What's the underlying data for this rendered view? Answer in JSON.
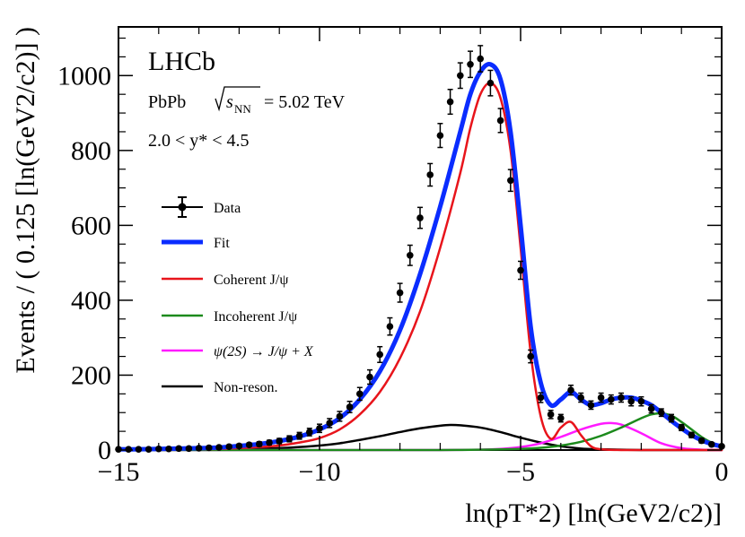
{
  "chart_data": {
    "type": "line",
    "experiment": "LHCb",
    "collision": "PbPb",
    "energy_label": "= 5.02 TeV",
    "rapidity_label": "2.0 <  y* < 4.5",
    "xlabel": "ln(pT*2) [ln(GeV2/c2)]",
    "ylabel": "Events / ( 0.125 [ln(GeV2/c2)] )",
    "xlim": [
      -15,
      0
    ],
    "ylim": [
      0,
      1130
    ],
    "x_ticks": [
      -15,
      -10,
      -5,
      0
    ],
    "y_ticks": [
      0,
      200,
      400,
      600,
      800,
      1000
    ],
    "x_tick_labels": [
      "−15",
      "−10",
      "−5",
      "0"
    ],
    "y_tick_labels": [
      "0",
      "200",
      "400",
      "600",
      "800",
      "1000"
    ],
    "legend": [
      {
        "name": "Data",
        "color": "#000000"
      },
      {
        "name": "Fit",
        "color": "#0a2cff"
      },
      {
        "name": "Coherent  J/ψ",
        "color": "#e8141b"
      },
      {
        "name": "Incoherent  J/ψ",
        "color": "#1c8a1c"
      },
      {
        "name": "ψ(2S)  →  J/ψ +  X",
        "color": "#ff1aff"
      },
      {
        "name": "Non-reson.",
        "color": "#000000"
      }
    ],
    "series": [
      {
        "name": "Data",
        "x": [
          -15.0,
          -14.75,
          -14.5,
          -14.25,
          -14.0,
          -13.75,
          -13.5,
          -13.25,
          -13.0,
          -12.75,
          -12.5,
          -12.25,
          -12.0,
          -11.75,
          -11.5,
          -11.25,
          -11.0,
          -10.75,
          -10.5,
          -10.25,
          -10.0,
          -9.75,
          -9.5,
          -9.25,
          -9.0,
          -8.75,
          -8.5,
          -8.25,
          -8.0,
          -7.75,
          -7.5,
          -7.25,
          -7.0,
          -6.75,
          -6.5,
          -6.25,
          -6.0,
          -5.75,
          -5.5,
          -5.25,
          -5.0,
          -4.75,
          -4.5,
          -4.25,
          -4.0,
          -3.75,
          -3.5,
          -3.25,
          -3.0,
          -2.75,
          -2.5,
          -2.25,
          -2.0,
          -1.75,
          -1.5,
          -1.25,
          -1.0,
          -0.75,
          -0.5,
          -0.25,
          0.0
        ],
        "y": [
          2,
          2,
          2,
          2,
          3,
          3,
          4,
          4,
          5,
          6,
          7,
          9,
          11,
          14,
          16,
          20,
          24,
          30,
          38,
          48,
          58,
          72,
          90,
          115,
          150,
          195,
          255,
          330,
          420,
          520,
          620,
          735,
          840,
          930,
          1000,
          1030,
          1045,
          980,
          880,
          720,
          480,
          250,
          140,
          95,
          85,
          160,
          140,
          120,
          140,
          135,
          140,
          130,
          130,
          110,
          100,
          85,
          60,
          40,
          25,
          15,
          10
        ],
        "yerr": [
          2,
          2,
          2,
          2,
          2,
          2,
          3,
          3,
          3,
          3,
          4,
          4,
          5,
          5,
          6,
          6,
          7,
          8,
          9,
          10,
          11,
          12,
          13,
          15,
          17,
          19,
          21,
          23,
          25,
          27,
          28,
          30,
          32,
          33,
          34,
          35,
          35,
          34,
          32,
          29,
          24,
          17,
          13,
          11,
          10,
          13,
          12,
          11,
          12,
          12,
          12,
          12,
          12,
          11,
          10,
          10,
          8,
          7,
          6,
          5,
          4
        ]
      },
      {
        "name": "Fit",
        "x": [
          -15.0,
          -14.5,
          -14.0,
          -13.5,
          -13.0,
          -12.5,
          -12.0,
          -11.5,
          -11.0,
          -10.5,
          -10.0,
          -9.5,
          -9.0,
          -8.5,
          -8.0,
          -7.5,
          -7.0,
          -6.5,
          -6.25,
          -6.0,
          -5.75,
          -5.5,
          -5.25,
          -5.0,
          -4.75,
          -4.5,
          -4.25,
          -4.0,
          -3.75,
          -3.5,
          -3.25,
          -3.0,
          -2.75,
          -2.5,
          -2.25,
          -2.0,
          -1.75,
          -1.5,
          -1.25,
          -1.0,
          -0.75,
          -0.5,
          -0.25,
          0.0
        ],
        "y": [
          2,
          2,
          3,
          4,
          5,
          7,
          11,
          16,
          24,
          36,
          55,
          85,
          135,
          210,
          320,
          470,
          650,
          850,
          950,
          1010,
          1030,
          990,
          850,
          600,
          330,
          180,
          120,
          135,
          155,
          135,
          120,
          125,
          135,
          140,
          140,
          132,
          120,
          100,
          78,
          58,
          40,
          26,
          16,
          10
        ]
      },
      {
        "name": "Coherent  J/ψ",
        "x": [
          -15.0,
          -14.5,
          -14.0,
          -13.5,
          -13.0,
          -12.5,
          -12.0,
          -11.5,
          -11.0,
          -10.5,
          -10.0,
          -9.5,
          -9.0,
          -8.5,
          -8.0,
          -7.5,
          -7.0,
          -6.5,
          -6.25,
          -6.0,
          -5.75,
          -5.5,
          -5.25,
          -5.0,
          -4.75,
          -4.5,
          -4.25,
          -4.0,
          -3.75,
          -3.5,
          -3.25,
          -3.0,
          -2.5,
          -2.0,
          -1.5,
          -1.0,
          -0.5,
          0.0
        ],
        "y": [
          1,
          1,
          1,
          2,
          2,
          3,
          5,
          8,
          12,
          20,
          32,
          55,
          95,
          155,
          245,
          370,
          540,
          740,
          860,
          950,
          980,
          940,
          800,
          540,
          260,
          90,
          30,
          60,
          75,
          40,
          10,
          2,
          0,
          0,
          0,
          0,
          0,
          0
        ]
      },
      {
        "name": "Incoherent  J/ψ",
        "x": [
          -15.0,
          -14.0,
          -13.0,
          -12.0,
          -11.0,
          -10.0,
          -9.0,
          -8.0,
          -7.0,
          -6.0,
          -5.0,
          -4.5,
          -4.0,
          -3.5,
          -3.0,
          -2.5,
          -2.0,
          -1.75,
          -1.5,
          -1.25,
          -1.0,
          -0.75,
          -0.5,
          -0.25,
          0.0
        ],
        "y": [
          0,
          0,
          0,
          0,
          0,
          0,
          0,
          0,
          0,
          1,
          3,
          6,
          12,
          22,
          38,
          60,
          85,
          95,
          98,
          92,
          75,
          55,
          35,
          20,
          12
        ]
      },
      {
        "name": "ψ(2S)  →  J/ψ +  X",
        "x": [
          -15.0,
          -14.0,
          -13.0,
          -12.0,
          -11.0,
          -10.0,
          -9.0,
          -8.0,
          -7.0,
          -6.0,
          -5.5,
          -5.0,
          -4.5,
          -4.0,
          -3.5,
          -3.0,
          -2.75,
          -2.5,
          -2.0,
          -1.5,
          -1.0,
          -0.5,
          0.0
        ],
        "y": [
          0,
          0,
          0,
          0,
          0,
          0,
          0,
          0,
          0,
          1,
          3,
          8,
          18,
          35,
          55,
          70,
          72,
          68,
          45,
          18,
          5,
          1,
          0
        ]
      },
      {
        "name": "Non-reson.",
        "x": [
          -15.0,
          -14.0,
          -13.0,
          -12.0,
          -11.0,
          -10.5,
          -10.0,
          -9.5,
          -9.0,
          -8.5,
          -8.0,
          -7.5,
          -7.0,
          -6.75,
          -6.5,
          -6.0,
          -5.5,
          -5.0,
          -4.5,
          -4.0,
          -3.5,
          -3.0,
          -2.5,
          -2.0,
          -1.0,
          0.0
        ],
        "y": [
          0,
          0,
          1,
          2,
          5,
          8,
          12,
          18,
          27,
          37,
          48,
          58,
          65,
          67,
          66,
          60,
          48,
          33,
          20,
          10,
          4,
          2,
          1,
          0,
          0,
          0
        ]
      }
    ]
  }
}
